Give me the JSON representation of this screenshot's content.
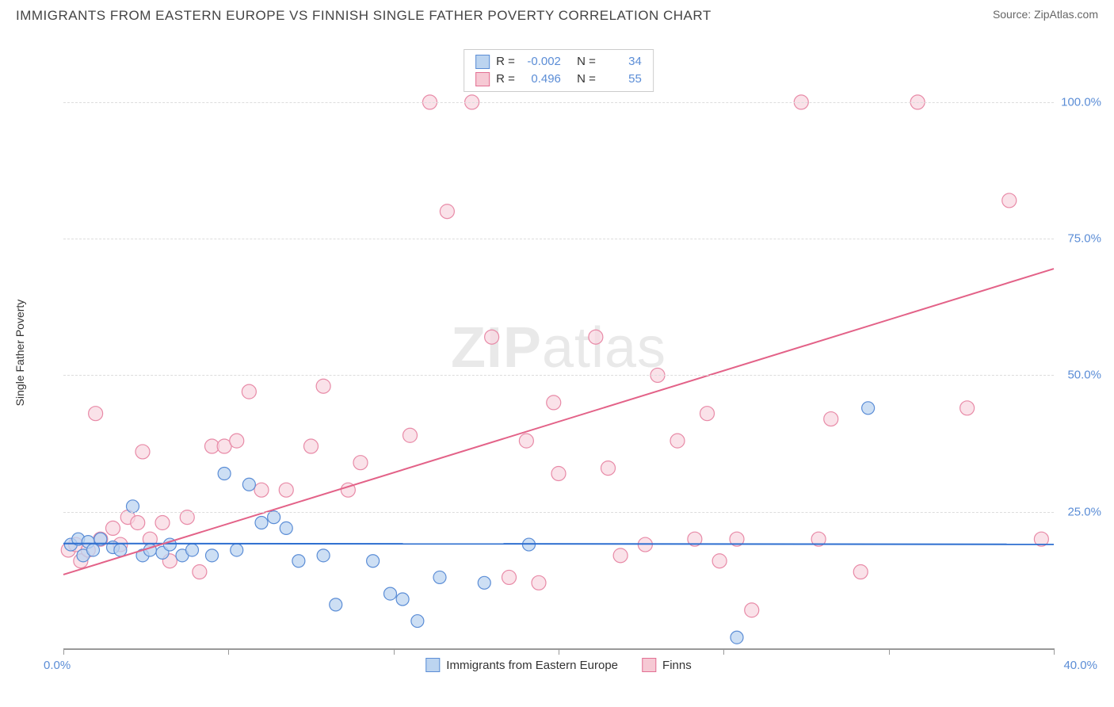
{
  "header": {
    "title": "IMMIGRANTS FROM EASTERN EUROPE VS FINNISH SINGLE FATHER POVERTY CORRELATION CHART",
    "source_prefix": "Source: ",
    "source_name": "ZipAtlas.com"
  },
  "chart": {
    "type": "scatter",
    "ylabel": "Single Father Poverty",
    "watermark": {
      "bold": "ZIP",
      "light": "atlas"
    },
    "xlim": [
      0,
      40
    ],
    "ylim": [
      0,
      110
    ],
    "yticks": [
      {
        "v": 25,
        "label": "25.0%"
      },
      {
        "v": 50,
        "label": "50.0%"
      },
      {
        "v": 75,
        "label": "75.0%"
      },
      {
        "v": 100,
        "label": "100.0%"
      }
    ],
    "xticks_minor": [
      0,
      6.667,
      13.333,
      20,
      26.667,
      33.333,
      40
    ],
    "xticks_labeled": [
      {
        "v": 0,
        "label": "0.0%"
      },
      {
        "v": 40,
        "label": "40.0%"
      }
    ],
    "legend_top": {
      "rows": [
        {
          "swatch_fill": "#bcd4f0",
          "swatch_border": "#5b8dd6",
          "r_label": "R =",
          "r_value": "-0.002",
          "n_label": "N =",
          "n_value": "34"
        },
        {
          "swatch_fill": "#f6c9d4",
          "swatch_border": "#e36f93",
          "r_label": "R =",
          "r_value": "0.496",
          "n_label": "N =",
          "n_value": "55"
        }
      ]
    },
    "legend_bottom": {
      "items": [
        {
          "swatch_fill": "#bcd4f0",
          "swatch_border": "#5b8dd6",
          "label": "Immigrants from Eastern Europe"
        },
        {
          "swatch_fill": "#f6c9d4",
          "swatch_border": "#e36f93",
          "label": "Finns"
        }
      ]
    },
    "series": [
      {
        "name": "Immigrants from Eastern Europe",
        "marker_fill": "#bcd4f0",
        "marker_stroke": "#5b8dd6",
        "marker_opacity": 0.75,
        "marker_r": 8,
        "trend": {
          "slope": -0.004,
          "intercept": 19.2,
          "color": "#2e6fd0",
          "width": 2
        },
        "points": [
          [
            0.3,
            19
          ],
          [
            0.6,
            20
          ],
          [
            0.8,
            17
          ],
          [
            1.0,
            19.5
          ],
          [
            1.2,
            18
          ],
          [
            1.5,
            20
          ],
          [
            2.0,
            18.5
          ],
          [
            2.3,
            18
          ],
          [
            2.8,
            26
          ],
          [
            3.2,
            17
          ],
          [
            3.5,
            18
          ],
          [
            4.0,
            17.5
          ],
          [
            4.3,
            19
          ],
          [
            4.8,
            17
          ],
          [
            5.2,
            18
          ],
          [
            6.0,
            17
          ],
          [
            6.5,
            32
          ],
          [
            7.0,
            18
          ],
          [
            7.5,
            30
          ],
          [
            8.0,
            23
          ],
          [
            8.5,
            24
          ],
          [
            9.0,
            22
          ],
          [
            9.5,
            16
          ],
          [
            10.5,
            17
          ],
          [
            11.0,
            8
          ],
          [
            12.5,
            16
          ],
          [
            13.2,
            10
          ],
          [
            13.7,
            9
          ],
          [
            14.3,
            5
          ],
          [
            15.2,
            13
          ],
          [
            17.0,
            12
          ],
          [
            18.8,
            19
          ],
          [
            27.2,
            2
          ],
          [
            32.5,
            44
          ]
        ]
      },
      {
        "name": "Finns",
        "marker_fill": "#f8d6df",
        "marker_stroke": "#e88aa7",
        "marker_opacity": 0.7,
        "marker_r": 9,
        "trend": {
          "slope": 1.4,
          "intercept": 13.5,
          "color": "#e36288",
          "width": 2
        },
        "points": [
          [
            0.2,
            18
          ],
          [
            0.5,
            19
          ],
          [
            0.7,
            16
          ],
          [
            1.0,
            18
          ],
          [
            1.3,
            43
          ],
          [
            1.5,
            20
          ],
          [
            2.0,
            22
          ],
          [
            2.3,
            19
          ],
          [
            2.6,
            24
          ],
          [
            3.0,
            23
          ],
          [
            3.2,
            36
          ],
          [
            3.5,
            20
          ],
          [
            4.0,
            23
          ],
          [
            4.3,
            16
          ],
          [
            5.0,
            24
          ],
          [
            5.5,
            14
          ],
          [
            6.0,
            37
          ],
          [
            6.5,
            37
          ],
          [
            7.0,
            38
          ],
          [
            7.5,
            47
          ],
          [
            8.0,
            29
          ],
          [
            9.0,
            29
          ],
          [
            10.0,
            37
          ],
          [
            10.5,
            48
          ],
          [
            11.5,
            29
          ],
          [
            12.0,
            34
          ],
          [
            14.0,
            39
          ],
          [
            14.8,
            100
          ],
          [
            15.5,
            80
          ],
          [
            16.5,
            100
          ],
          [
            17.3,
            57
          ],
          [
            18.0,
            13
          ],
          [
            18.7,
            38
          ],
          [
            19.2,
            12
          ],
          [
            19.8,
            45
          ],
          [
            20.0,
            32
          ],
          [
            21.5,
            57
          ],
          [
            22.0,
            33
          ],
          [
            22.5,
            17
          ],
          [
            23.5,
            19
          ],
          [
            24.0,
            50
          ],
          [
            24.8,
            38
          ],
          [
            25.5,
            20
          ],
          [
            26.0,
            43
          ],
          [
            26.5,
            16
          ],
          [
            27.2,
            20
          ],
          [
            27.8,
            7
          ],
          [
            29.8,
            100
          ],
          [
            30.5,
            20
          ],
          [
            31.0,
            42
          ],
          [
            32.2,
            14
          ],
          [
            34.5,
            100
          ],
          [
            36.5,
            44
          ],
          [
            38.2,
            82
          ],
          [
            39.5,
            20
          ]
        ]
      }
    ],
    "background_color": "#ffffff",
    "grid_color": "#dddddd",
    "axis_color": "#999999",
    "tick_label_color": "#5b8dd6"
  }
}
